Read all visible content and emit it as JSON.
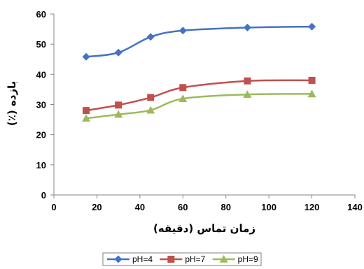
{
  "chart_data": {
    "type": "line",
    "title": "",
    "xlabel": "زمان تماس (دقیقه)",
    "ylabel": "بازده (٪)",
    "xlim": [
      0,
      140
    ],
    "ylim": [
      0,
      60
    ],
    "x_ticks": [
      0,
      20,
      40,
      60,
      80,
      100,
      120,
      140
    ],
    "y_ticks": [
      0,
      10,
      20,
      30,
      40,
      50,
      60
    ],
    "grid": false,
    "legend_position": "bottom",
    "x": [
      15,
      30,
      45,
      60,
      90,
      120
    ],
    "series": [
      {
        "name": "pH=4",
        "values": [
          45.8,
          47.2,
          52.4,
          54.5,
          55.5,
          55.8
        ],
        "color": "#4472c4",
        "marker": "diamond"
      },
      {
        "name": "pH=7",
        "values": [
          28.0,
          29.8,
          32.3,
          35.6,
          37.8,
          38.0
        ],
        "color": "#c0504d",
        "marker": "square"
      },
      {
        "name": "pH=9",
        "values": [
          25.4,
          26.7,
          28.1,
          31.9,
          33.3,
          33.5
        ],
        "color": "#9bbb59",
        "marker": "triangle"
      }
    ]
  }
}
